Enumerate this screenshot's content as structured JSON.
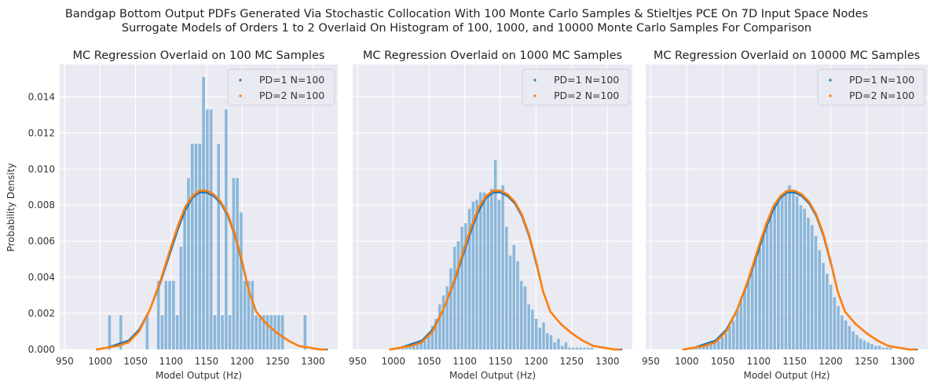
{
  "figure": {
    "title_line1": "Bandgap Bottom Output PDFs Generated Via Stochastic Collocation With 100 Monte Carlo Samples & Stieltjes PCE On 7D Input Space Nodes",
    "title_line2": "Surrogate Models of Orders 1 to 2 Overlaid On Histogram of 100, 1000, and 10000 Monte Carlo Samples For Comparison",
    "xlabel": "Model Output (Hz)",
    "ylabel": "Probability Density"
  },
  "colors": {
    "axes_bg": "#eaeaf2",
    "grid": "#ffffff",
    "hist": "#7fb1d7",
    "pd1": "#1f77b4",
    "pd2": "#ff7f0e"
  },
  "chart_data": [
    {
      "type": "bar",
      "title": "MC Regression Overlaid on 100 MC Samples",
      "xlabel": "Model Output (Hz)",
      "ylabel": "Probability Density",
      "xlim": [
        943,
        1335
      ],
      "ylim": [
        0,
        0.0158
      ],
      "xticks": [
        950,
        1000,
        1050,
        1100,
        1150,
        1200,
        1250,
        1300
      ],
      "yticks": [
        0.0,
        0.002,
        0.004,
        0.006,
        0.008,
        0.01,
        0.012,
        0.014
      ],
      "ytick_labels": [
        "0.000",
        "0.002",
        "0.004",
        "0.006",
        "0.008",
        "0.010",
        "0.012",
        "0.014"
      ],
      "grid": true,
      "legend": "top-right",
      "histogram": {
        "bin_start": 1000,
        "bin_width": 5.3,
        "densities": [
          0,
          0,
          0.0019,
          0,
          0,
          0.0019,
          0,
          0,
          0,
          0,
          0,
          0,
          0.0019,
          0,
          0,
          0.0038,
          0.0019,
          0.0038,
          0.0038,
          0.0038,
          0.0019,
          0.0057,
          0.0076,
          0.0095,
          0.0114,
          0.0114,
          0.0114,
          0.0151,
          0.0133,
          0.0133,
          0.0019,
          0.0114,
          0.0019,
          0.0133,
          0.0019,
          0.0095,
          0.0095,
          0.0076,
          0.0038,
          0.0038,
          0.0038,
          0.0019,
          0.0019,
          0.0019,
          0.0019,
          0.0019,
          0.0019,
          0.0019,
          0.0019,
          0,
          0,
          0,
          0,
          0,
          0.0019
        ]
      },
      "series": [
        {
          "name": "PD=1 N=100",
          "x": [
            995,
            1010,
            1025,
            1040,
            1055,
            1070,
            1085,
            1100,
            1110,
            1120,
            1130,
            1140,
            1150,
            1160,
            1170,
            1180,
            1190,
            1200,
            1210,
            1220,
            1235,
            1250,
            1265,
            1280,
            1295,
            1310,
            1320
          ],
          "y": [
            0.0,
            0.0001,
            0.0003,
            0.0005,
            0.0011,
            0.0022,
            0.0037,
            0.0055,
            0.0067,
            0.0077,
            0.0084,
            0.0087,
            0.0087,
            0.0085,
            0.0081,
            0.0074,
            0.0063,
            0.0048,
            0.0032,
            0.0021,
            0.0014,
            0.0009,
            0.0005,
            0.0002,
            0.0001,
            0.0,
            0.0
          ]
        },
        {
          "name": "PD=2 N=100",
          "x": [
            995,
            1010,
            1025,
            1040,
            1055,
            1070,
            1085,
            1100,
            1110,
            1120,
            1130,
            1140,
            1150,
            1160,
            1170,
            1180,
            1190,
            1200,
            1210,
            1220,
            1235,
            1250,
            1265,
            1280,
            1295,
            1310,
            1318
          ],
          "y": [
            0.0,
            0.0001,
            0.0002,
            0.0004,
            0.001,
            0.0022,
            0.0038,
            0.0057,
            0.0069,
            0.0079,
            0.0085,
            0.0088,
            0.0088,
            0.0086,
            0.0082,
            0.0075,
            0.0064,
            0.0049,
            0.0032,
            0.0021,
            0.0014,
            0.0009,
            0.0005,
            0.0002,
            0.0001,
            0.0,
            0.0
          ]
        }
      ]
    },
    {
      "type": "bar",
      "title": "MC Regression Overlaid on 1000 MC Samples",
      "xlabel": "Model Output (Hz)",
      "xlim": [
        943,
        1335
      ],
      "ylim": [
        0,
        0.0158
      ],
      "xticks": [
        950,
        1000,
        1050,
        1100,
        1150,
        1200,
        1250,
        1300
      ],
      "grid": true,
      "legend": "top-right",
      "histogram": {
        "bin_start": 1000,
        "bin_width": 5.2,
        "densities": [
          0,
          0.0001,
          0.0001,
          0.0001,
          0.0002,
          0.0002,
          0.0004,
          0.0004,
          0.0005,
          0.0009,
          0.0013,
          0.0017,
          0.0025,
          0.003,
          0.0035,
          0.0045,
          0.0057,
          0.006,
          0.0068,
          0.007,
          0.0078,
          0.0082,
          0.0083,
          0.0087,
          0.0087,
          0.0085,
          0.0089,
          0.0105,
          0.0083,
          0.0091,
          0.0068,
          0.0052,
          0.0058,
          0.0049,
          0.0038,
          0.0035,
          0.0025,
          0.0022,
          0.0017,
          0.0012,
          0.0015,
          0.0009,
          0.0008,
          0.0004,
          0.0006,
          0.0002,
          0.0004,
          0.0001,
          0.0001,
          0.0001,
          0.0001,
          0.0001,
          0.0001,
          0.0001,
          0.0
        ]
      },
      "series": [
        {
          "name": "PD=1 N=100",
          "x": [
            995,
            1010,
            1025,
            1040,
            1055,
            1070,
            1085,
            1100,
            1110,
            1120,
            1130,
            1140,
            1150,
            1160,
            1170,
            1180,
            1190,
            1200,
            1210,
            1220,
            1235,
            1250,
            1265,
            1280,
            1295,
            1310,
            1320
          ],
          "y": [
            0.0,
            0.0001,
            0.0003,
            0.0005,
            0.0011,
            0.0022,
            0.0037,
            0.0055,
            0.0067,
            0.0077,
            0.0084,
            0.0087,
            0.0087,
            0.0085,
            0.0081,
            0.0074,
            0.0063,
            0.0048,
            0.0032,
            0.0021,
            0.0014,
            0.0009,
            0.0005,
            0.0002,
            0.0001,
            0.0,
            0.0
          ]
        },
        {
          "name": "PD=2 N=100",
          "x": [
            995,
            1010,
            1025,
            1040,
            1055,
            1070,
            1085,
            1100,
            1110,
            1120,
            1130,
            1140,
            1150,
            1160,
            1170,
            1180,
            1190,
            1200,
            1210,
            1220,
            1235,
            1250,
            1265,
            1280,
            1295,
            1310,
            1318
          ],
          "y": [
            0.0,
            0.0001,
            0.0002,
            0.0004,
            0.001,
            0.0022,
            0.0038,
            0.0057,
            0.0069,
            0.0079,
            0.0085,
            0.0088,
            0.0088,
            0.0086,
            0.0082,
            0.0075,
            0.0064,
            0.0049,
            0.0032,
            0.0021,
            0.0014,
            0.0009,
            0.0005,
            0.0002,
            0.0001,
            0.0,
            0.0
          ]
        }
      ]
    },
    {
      "type": "bar",
      "title": "MC Regression Overlaid on 10000 MC Samples",
      "xlabel": "Model Output (Hz)",
      "xlim": [
        943,
        1335
      ],
      "ylim": [
        0,
        0.0158
      ],
      "xticks": [
        950,
        1000,
        1050,
        1100,
        1150,
        1200,
        1250,
        1300
      ],
      "grid": true,
      "legend": "top-right",
      "histogram": {
        "bin_start": 1000,
        "bin_width": 5.2,
        "densities": [
          0.0001,
          0.0001,
          0.0001,
          0.0002,
          0.0002,
          0.0003,
          0.0004,
          0.0005,
          0.0005,
          0.0007,
          0.0009,
          0.0013,
          0.0016,
          0.0022,
          0.0028,
          0.0033,
          0.0038,
          0.0045,
          0.005,
          0.0056,
          0.0063,
          0.0069,
          0.0074,
          0.0081,
          0.0083,
          0.0086,
          0.0088,
          0.0091,
          0.0087,
          0.0085,
          0.008,
          0.0078,
          0.0073,
          0.0069,
          0.0063,
          0.0055,
          0.0048,
          0.0042,
          0.0036,
          0.0029,
          0.0024,
          0.0019,
          0.0016,
          0.0013,
          0.001,
          0.0008,
          0.0006,
          0.0005,
          0.0004,
          0.0003,
          0.0002,
          0.0002,
          0.0001,
          0.0001,
          0.0001
        ]
      },
      "series": [
        {
          "name": "PD=1 N=100",
          "x": [
            995,
            1010,
            1025,
            1040,
            1055,
            1070,
            1085,
            1100,
            1110,
            1120,
            1130,
            1140,
            1150,
            1160,
            1170,
            1180,
            1190,
            1200,
            1210,
            1220,
            1235,
            1250,
            1265,
            1280,
            1295,
            1310,
            1320
          ],
          "y": [
            0.0,
            0.0001,
            0.0003,
            0.0005,
            0.0011,
            0.0022,
            0.0037,
            0.0055,
            0.0067,
            0.0077,
            0.0084,
            0.0087,
            0.0087,
            0.0085,
            0.0081,
            0.0074,
            0.0063,
            0.0048,
            0.0032,
            0.0021,
            0.0014,
            0.0009,
            0.0005,
            0.0002,
            0.0001,
            0.0,
            0.0
          ]
        },
        {
          "name": "PD=2 N=100",
          "x": [
            995,
            1010,
            1025,
            1040,
            1055,
            1070,
            1085,
            1100,
            1110,
            1120,
            1130,
            1140,
            1150,
            1160,
            1170,
            1180,
            1190,
            1200,
            1210,
            1220,
            1235,
            1250,
            1265,
            1280,
            1295,
            1310,
            1318
          ],
          "y": [
            0.0,
            0.0001,
            0.0002,
            0.0004,
            0.001,
            0.0022,
            0.0038,
            0.0057,
            0.0069,
            0.0079,
            0.0085,
            0.0088,
            0.0088,
            0.0086,
            0.0082,
            0.0075,
            0.0064,
            0.0049,
            0.0032,
            0.0021,
            0.0014,
            0.0009,
            0.0005,
            0.0002,
            0.0001,
            0.0,
            0.0
          ]
        }
      ]
    }
  ]
}
